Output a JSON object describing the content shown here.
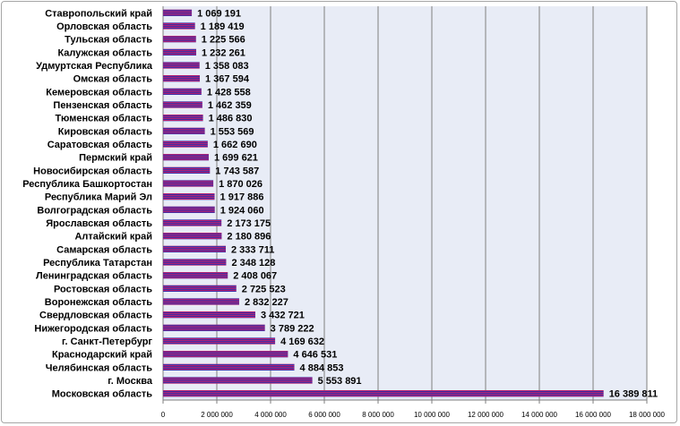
{
  "chart_data": {
    "type": "bar",
    "orientation": "horizontal",
    "title": "",
    "xlabel": "",
    "ylabel": "",
    "xlim": [
      0,
      18000000
    ],
    "x_ticks": [
      0,
      2000000,
      4000000,
      6000000,
      8000000,
      10000000,
      12000000,
      14000000,
      16000000,
      18000000
    ],
    "x_tick_labels": [
      "0",
      "2 000 000",
      "4 000 000",
      "6 000 000",
      "8 000 000",
      "10 000 000",
      "12 000 000",
      "14 000 000",
      "16 000 000",
      "18 000 000"
    ],
    "grid": true,
    "legend": "none",
    "categories": [
      "Ставропольский край",
      "Орловская область",
      "Тульская область",
      "Калужская область",
      "Удмуртская Республика",
      "Омская область",
      "Кемеровская область",
      "Пензенская область",
      "Тюменская область",
      "Кировская область",
      "Саратовская область",
      "Пермский край",
      "Новосибирская область",
      "Республика Башкортостан",
      "Республика Марий Эл",
      "Волгоградская область",
      "Ярославская область",
      "Алтайский край",
      "Самарская область",
      "Республика Татарстан",
      "Ленинградская область",
      "Ростовская область",
      "Воронежская область",
      "Свердловская область",
      "Нижегородская область",
      "г. Санкт-Петербург",
      "Краснодарский край",
      "Челябинская область",
      "г. Москва",
      "Московская область"
    ],
    "values": [
      1069191,
      1189419,
      1225566,
      1232261,
      1358083,
      1367594,
      1428558,
      1462359,
      1486830,
      1553569,
      1662690,
      1699621,
      1743587,
      1870026,
      1917886,
      1924060,
      2173175,
      2180896,
      2333711,
      2348128,
      2408067,
      2725523,
      2832227,
      3432721,
      3789222,
      4169632,
      4646531,
      4884853,
      5553891,
      16389811
    ],
    "value_labels": [
      "1 069 191",
      "1 189 419",
      "1 225 566",
      "1 232 261",
      "1 358 083",
      "1 367 594",
      "1 428 558",
      "1 462 359",
      "1 486 830",
      "1 553 569",
      "1 662 690",
      "1 699 621",
      "1 743 587",
      "1 870 026",
      "1 917 886",
      "1 924 060",
      "2 173 175",
      "2 180 896",
      "2 333 711",
      "2 348 128",
      "2 408 067",
      "2 725 523",
      "2 832 227",
      "3 432 721",
      "3 789 222",
      "4 169 632",
      "4 646 531",
      "4 884 853",
      "5 553 891",
      "16 389 811"
    ]
  },
  "colors": {
    "plot_background": "#e8ecf6",
    "gridline": "#7f7f7f",
    "bar_fill": "#b8206f",
    "bar_stripe": "#3b2fa8",
    "frame_border": "#a6a6a6"
  }
}
